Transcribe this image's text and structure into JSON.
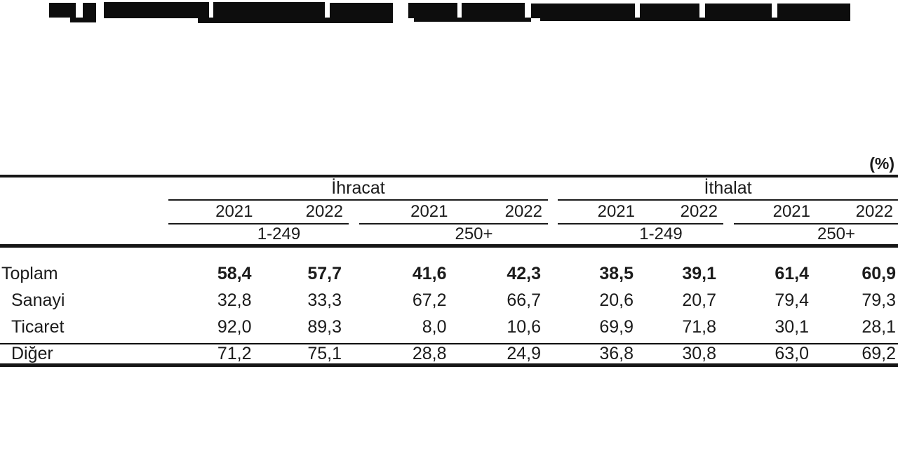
{
  "meta": {
    "unit_label": "(%)",
    "title_redacted": true
  },
  "colors": {
    "ink": "#1b1b1b",
    "rule": "#161616",
    "mask": "#0d0d0d",
    "background": "#ffffff"
  },
  "table": {
    "groups": [
      {
        "label": "İhracat"
      },
      {
        "label": "İthalat"
      }
    ],
    "years": [
      "2021",
      "2022",
      "2021",
      "2022",
      "2021",
      "2022",
      "2021",
      "2022"
    ],
    "size_classes": [
      "1-249",
      "250+",
      "1-249",
      "250+"
    ],
    "rows": [
      {
        "label": "Toplam",
        "bold": true,
        "indent": false,
        "values": [
          "58,4",
          "57,7",
          "41,6",
          "42,3",
          "38,5",
          "39,1",
          "61,4",
          "60,9"
        ]
      },
      {
        "label": "Sanayi",
        "bold": false,
        "indent": true,
        "values": [
          "32,8",
          "33,3",
          "67,2",
          "66,7",
          "20,6",
          "20,7",
          "79,4",
          "79,3"
        ]
      },
      {
        "label": "Ticaret",
        "bold": false,
        "indent": true,
        "values": [
          "92,0",
          "89,3",
          "8,0",
          "10,6",
          "69,9",
          "71,8",
          "30,1",
          "28,1"
        ]
      },
      {
        "label": "Diğer",
        "bold": false,
        "indent": true,
        "values": [
          "71,2",
          "75,1",
          "28,8",
          "24,9",
          "36,8",
          "30,8",
          "63,0",
          "69,2"
        ]
      }
    ]
  },
  "chart_data": {
    "type": "table",
    "unit": "(%)",
    "title": "",
    "column_groups": [
      "İhracat",
      "İthalat"
    ],
    "columns": [
      {
        "group": "İhracat",
        "size_class": "1-249",
        "year": 2021
      },
      {
        "group": "İhracat",
        "size_class": "1-249",
        "year": 2022
      },
      {
        "group": "İhracat",
        "size_class": "250+",
        "year": 2021
      },
      {
        "group": "İhracat",
        "size_class": "250+",
        "year": 2022
      },
      {
        "group": "İthalat",
        "size_class": "1-249",
        "year": 2021
      },
      {
        "group": "İthalat",
        "size_class": "1-249",
        "year": 2022
      },
      {
        "group": "İthalat",
        "size_class": "250+",
        "year": 2021
      },
      {
        "group": "İthalat",
        "size_class": "250+",
        "year": 2022
      }
    ],
    "series": [
      {
        "name": "Toplam",
        "values": [
          58.4,
          57.7,
          41.6,
          42.3,
          38.5,
          39.1,
          61.4,
          60.9
        ]
      },
      {
        "name": "Sanayi",
        "values": [
          32.8,
          33.3,
          67.2,
          66.7,
          20.6,
          20.7,
          79.4,
          79.3
        ]
      },
      {
        "name": "Ticaret",
        "values": [
          92.0,
          89.3,
          8.0,
          10.6,
          69.9,
          71.8,
          30.1,
          28.1
        ]
      },
      {
        "name": "Diğer",
        "values": [
          71.2,
          75.1,
          28.8,
          24.9,
          36.8,
          30.8,
          63.0,
          69.2
        ]
      }
    ]
  }
}
